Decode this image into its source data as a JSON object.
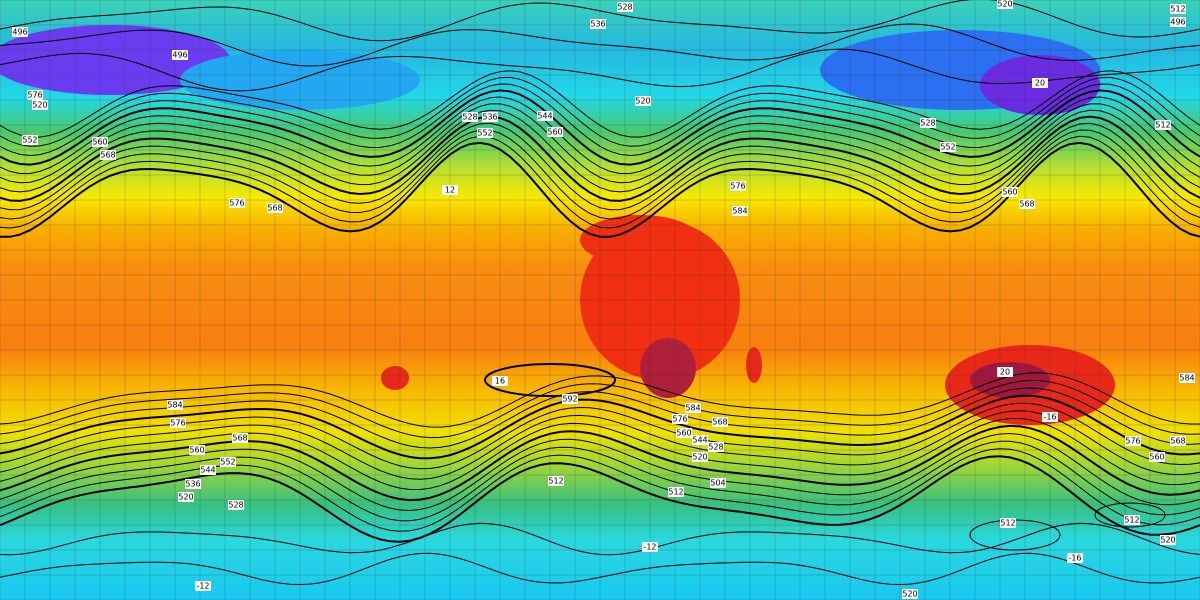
{
  "map": {
    "contour_labels": [
      "496",
      "496",
      "520",
      "576",
      "552",
      "560",
      "568",
      "576",
      "568",
      "12",
      "536",
      "528",
      "520",
      "512",
      "496",
      "536",
      "528",
      "544",
      "552",
      "560",
      "520",
      "528",
      "552",
      "512",
      "560",
      "568",
      "576",
      "584",
      "592",
      "584",
      "576",
      "568",
      "560",
      "544",
      "528",
      "520",
      "512",
      "504",
      "512",
      "584",
      "576",
      "568",
      "560",
      "552",
      "544",
      "536",
      "520",
      "528",
      "512",
      "512",
      "520",
      "520",
      "576",
      "584",
      "568",
      "560",
      "-12",
      "-12",
      "-16",
      "-16",
      "16",
      "20",
      "20"
    ]
  }
}
